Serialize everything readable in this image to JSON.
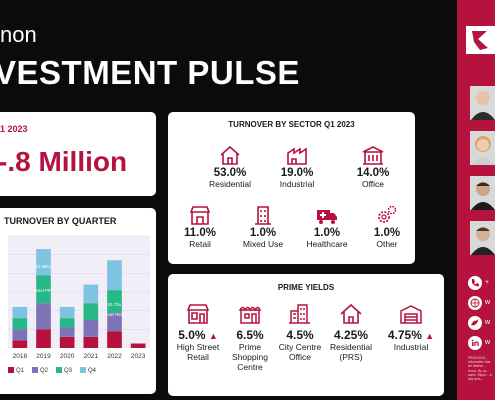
{
  "header": {
    "subtitle": "non",
    "title": "VESTMENT PULSE"
  },
  "total": {
    "label": "1 2023",
    "value": "-.8 Million"
  },
  "chart": {
    "title": "TURNOVER BY QUARTER",
    "labels": {
      "l2019": "£1.56bn",
      "l2019b": "Hotel PRT",
      "l2022": "€1.7bn",
      "l2022b": "Hotel REIT"
    }
  },
  "chart_data": {
    "type": "bar",
    "categories": [
      "2018",
      "2019",
      "2020",
      "2021",
      "2022",
      "2023"
    ],
    "series": [
      {
        "name": "Q1",
        "values": [
          0.2,
          0.5,
          0.3,
          0.3,
          0.45,
          0.12
        ]
      },
      {
        "name": "Q2",
        "values": [
          0.3,
          0.7,
          0.25,
          0.45,
          0.5,
          0
        ]
      },
      {
        "name": "Q3",
        "values": [
          0.3,
          0.75,
          0.25,
          0.45,
          0.6,
          0
        ]
      },
      {
        "name": "Q4",
        "values": [
          0.3,
          0.7,
          0.3,
          0.5,
          0.8,
          0
        ]
      }
    ],
    "ylim": [
      0,
      3.0
    ],
    "colors": [
      "#b5123e",
      "#7e73b6",
      "#26b886",
      "#7fc3e2"
    ],
    "grid": true,
    "legend": "bottom"
  },
  "sector": {
    "title": "TURNOVER BY SECTOR Q1 2023",
    "items": [
      {
        "pct": "53.0%",
        "name": "Residential",
        "icon": "house-icon"
      },
      {
        "pct": "19.0%",
        "name": "Industrial",
        "icon": "factory-icon"
      },
      {
        "pct": "14.0%",
        "name": "Office",
        "icon": "office-building-icon"
      },
      {
        "pct": "11.0%",
        "name": "Retail",
        "icon": "shop-icon"
      },
      {
        "pct": "1.0%",
        "name": "Mixed Use",
        "icon": "tall-building-icon"
      },
      {
        "pct": "1.0%",
        "name": "Healthcare",
        "icon": "ambulance-icon"
      },
      {
        "pct": "1.0%",
        "name": "Other",
        "icon": "gears-icon"
      }
    ]
  },
  "yields": {
    "title": "PRIME YIELDS",
    "items": [
      {
        "value": "5.0%",
        "name": "High Street Retail",
        "trend": "▲"
      },
      {
        "value": "6.5%",
        "name": "Prime Shopping Centre",
        "trend": ""
      },
      {
        "value": "4.5%",
        "name": "City Centre Office",
        "trend": ""
      },
      {
        "value": "4.25%",
        "name": "Residential (PRS)",
        "trend": ""
      },
      {
        "value": "4.75%",
        "name": "Industrial",
        "trend": "▲"
      }
    ]
  },
  "side": {
    "contacts": [
      "+",
      "w",
      "w",
      "w"
    ],
    "fine_print": "PRSA 0018... Information that we believe... errors. By us... same. Repro... in any form..."
  }
}
